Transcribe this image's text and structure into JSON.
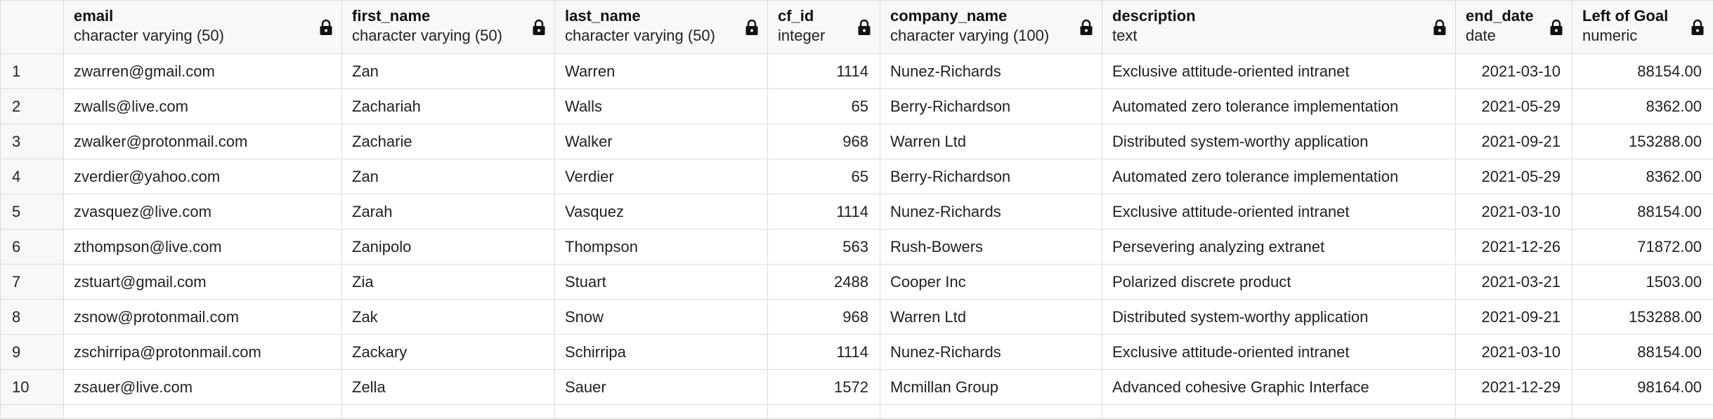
{
  "columns": [
    {
      "key": "email",
      "name": "email",
      "type": "character varying (50)",
      "align": "left"
    },
    {
      "key": "first_name",
      "name": "first_name",
      "type": "character varying (50)",
      "align": "left"
    },
    {
      "key": "last_name",
      "name": "last_name",
      "type": "character varying (50)",
      "align": "left"
    },
    {
      "key": "cf_id",
      "name": "cf_id",
      "type": "integer",
      "align": "right"
    },
    {
      "key": "company_name",
      "name": "company_name",
      "type": "character varying (100)",
      "align": "left"
    },
    {
      "key": "description",
      "name": "description",
      "type": "text",
      "align": "left"
    },
    {
      "key": "end_date",
      "name": "end_date",
      "type": "date",
      "align": "right"
    },
    {
      "key": "left_of_goal",
      "name": "Left of Goal",
      "type": "numeric",
      "align": "right"
    }
  ],
  "rows": [
    {
      "num": "1",
      "email": "zwarren@gmail.com",
      "first_name": "Zan",
      "last_name": "Warren",
      "cf_id": "1114",
      "company_name": "Nunez-Richards",
      "description": "Exclusive attitude-oriented intranet",
      "end_date": "2021-03-10",
      "left_of_goal": "88154.00"
    },
    {
      "num": "2",
      "email": "zwalls@live.com",
      "first_name": "Zachariah",
      "last_name": "Walls",
      "cf_id": "65",
      "company_name": "Berry-Richardson",
      "description": "Automated zero tolerance implementation",
      "end_date": "2021-05-29",
      "left_of_goal": "8362.00"
    },
    {
      "num": "3",
      "email": "zwalker@protonmail.com",
      "first_name": "Zacharie",
      "last_name": "Walker",
      "cf_id": "968",
      "company_name": "Warren Ltd",
      "description": "Distributed system-worthy application",
      "end_date": "2021-09-21",
      "left_of_goal": "153288.00"
    },
    {
      "num": "4",
      "email": "zverdier@yahoo.com",
      "first_name": "Zan",
      "last_name": "Verdier",
      "cf_id": "65",
      "company_name": "Berry-Richardson",
      "description": "Automated zero tolerance implementation",
      "end_date": "2021-05-29",
      "left_of_goal": "8362.00"
    },
    {
      "num": "5",
      "email": "zvasquez@live.com",
      "first_name": "Zarah",
      "last_name": "Vasquez",
      "cf_id": "1114",
      "company_name": "Nunez-Richards",
      "description": "Exclusive attitude-oriented intranet",
      "end_date": "2021-03-10",
      "left_of_goal": "88154.00"
    },
    {
      "num": "6",
      "email": "zthompson@live.com",
      "first_name": "Zanipolo",
      "last_name": "Thompson",
      "cf_id": "563",
      "company_name": "Rush-Bowers",
      "description": "Persevering analyzing extranet",
      "end_date": "2021-12-26",
      "left_of_goal": "71872.00"
    },
    {
      "num": "7",
      "email": "zstuart@gmail.com",
      "first_name": "Zia",
      "last_name": "Stuart",
      "cf_id": "2488",
      "company_name": "Cooper Inc",
      "description": "Polarized discrete product",
      "end_date": "2021-03-21",
      "left_of_goal": "1503.00"
    },
    {
      "num": "8",
      "email": "zsnow@protonmail.com",
      "first_name": "Zak",
      "last_name": "Snow",
      "cf_id": "968",
      "company_name": "Warren Ltd",
      "description": "Distributed system-worthy application",
      "end_date": "2021-09-21",
      "left_of_goal": "153288.00"
    },
    {
      "num": "9",
      "email": "zschirripa@protonmail.com",
      "first_name": "Zackary",
      "last_name": "Schirripa",
      "cf_id": "1114",
      "company_name": "Nunez-Richards",
      "description": "Exclusive attitude-oriented intranet",
      "end_date": "2021-03-10",
      "left_of_goal": "88154.00"
    },
    {
      "num": "10",
      "email": "zsauer@live.com",
      "first_name": "Zella",
      "last_name": "Sauer",
      "cf_id": "1572",
      "company_name": "Mcmillan Group",
      "description": "Advanced cohesive Graphic Interface",
      "end_date": "2021-12-29",
      "left_of_goal": "98164.00"
    }
  ],
  "icons": {
    "column_lock": "lock-icon"
  },
  "colors": {
    "header_bg": "#f8f8f8",
    "grid_line": "#dcdcdc",
    "text": "#222222"
  }
}
